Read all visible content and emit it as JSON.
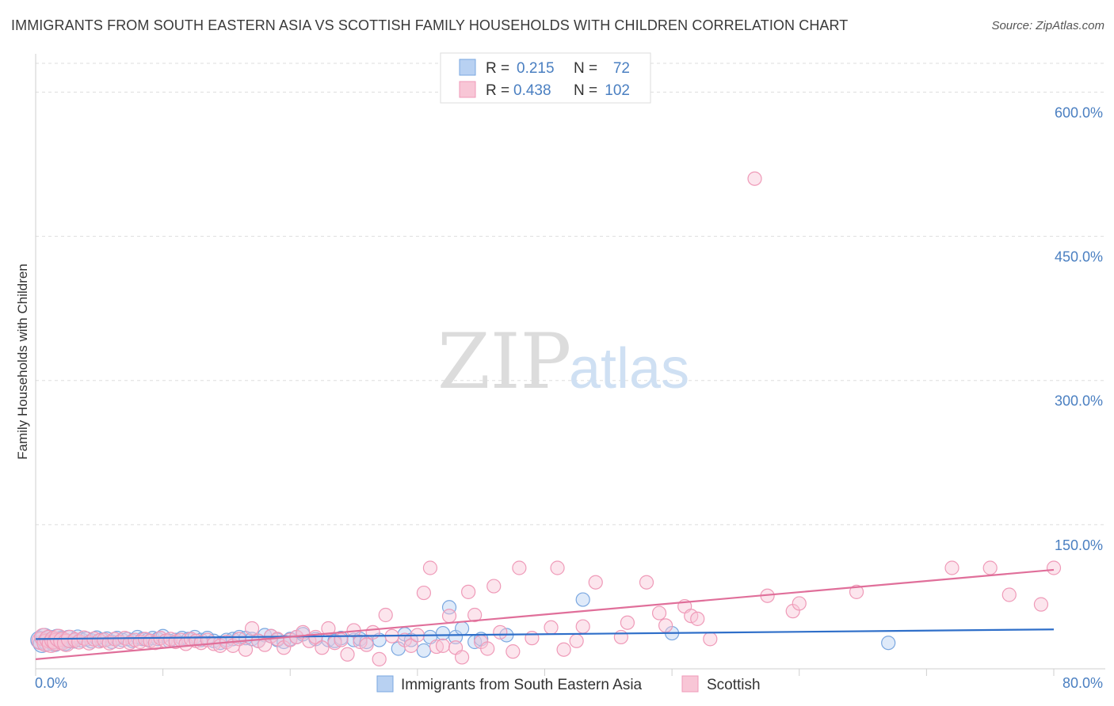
{
  "title": "IMMIGRANTS FROM SOUTH EASTERN ASIA VS SCOTTISH FAMILY HOUSEHOLDS WITH CHILDREN CORRELATION CHART",
  "source": "Source: ZipAtlas.com",
  "watermark": {
    "zip": "ZIP",
    "atlas": "atlas"
  },
  "legend": {
    "r_label": "R =",
    "n_label": "N =",
    "rows": [
      {
        "r": "0.215",
        "n": "72"
      },
      {
        "r": "0.438",
        "n": "102"
      }
    ]
  },
  "chart_data": {
    "type": "scatter",
    "title": "IMMIGRANTS FROM SOUTH EASTERN ASIA VS SCOTTISH FAMILY HOUSEHOLDS WITH CHILDREN CORRELATION CHART",
    "xlabel": "",
    "ylabel": "Family Households with Children",
    "xlim": [
      0,
      80
    ],
    "ylim": [
      0,
      630
    ],
    "x_tick_labels": [
      "0.0%",
      "80.0%"
    ],
    "y_ticks": [
      150,
      300,
      450,
      600
    ],
    "y_tick_labels": [
      "150.0%",
      "300.0%",
      "450.0%",
      "600.0%"
    ],
    "grid": true,
    "legend_position": "top-center",
    "series": [
      {
        "name": "Immigrants from South Eastern Asia",
        "color": "#7aa7e0",
        "fill": "#b8d1f2",
        "line_color": "#2f6fc9",
        "r": 0.215,
        "n": 72,
        "trend": {
          "x": [
            0,
            80
          ],
          "y": [
            31,
            41
          ]
        },
        "points": [
          [
            0.3,
            30
          ],
          [
            0.5,
            26
          ],
          [
            0.7,
            33
          ],
          [
            0.9,
            28
          ],
          [
            1.1,
            31
          ],
          [
            1.3,
            29
          ],
          [
            1.5,
            27
          ],
          [
            1.7,
            32
          ],
          [
            2.0,
            30
          ],
          [
            2.3,
            28
          ],
          [
            2.6,
            31
          ],
          [
            3.0,
            29
          ],
          [
            3.3,
            33
          ],
          [
            3.6,
            30
          ],
          [
            4.0,
            31
          ],
          [
            4.4,
            29
          ],
          [
            4.8,
            32
          ],
          [
            5.2,
            30
          ],
          [
            5.6,
            31
          ],
          [
            6.0,
            28
          ],
          [
            6.4,
            32
          ],
          [
            6.8,
            30
          ],
          [
            7.2,
            31
          ],
          [
            7.6,
            29
          ],
          [
            8.0,
            33
          ],
          [
            8.4,
            31
          ],
          [
            8.8,
            30
          ],
          [
            9.2,
            32
          ],
          [
            9.6,
            31
          ],
          [
            10.0,
            34
          ],
          [
            10.5,
            29
          ],
          [
            11.0,
            30
          ],
          [
            11.5,
            32
          ],
          [
            12.0,
            31
          ],
          [
            12.5,
            33
          ],
          [
            13.0,
            30
          ],
          [
            13.5,
            32
          ],
          [
            14.0,
            29
          ],
          [
            14.5,
            27
          ],
          [
            15.0,
            30
          ],
          [
            15.5,
            31
          ],
          [
            16.0,
            33
          ],
          [
            16.5,
            32
          ],
          [
            17.0,
            31
          ],
          [
            17.5,
            29
          ],
          [
            18.0,
            35
          ],
          [
            18.5,
            34
          ],
          [
            19.0,
            30
          ],
          [
            19.5,
            28
          ],
          [
            20.0,
            31
          ],
          [
            20.5,
            33
          ],
          [
            21.0,
            36
          ],
          [
            22.0,
            31
          ],
          [
            23.0,
            30
          ],
          [
            23.5,
            29
          ],
          [
            24.0,
            32
          ],
          [
            25.0,
            30
          ],
          [
            25.5,
            31
          ],
          [
            26.0,
            28
          ],
          [
            27.0,
            30
          ],
          [
            28.5,
            21
          ],
          [
            29.0,
            36
          ],
          [
            29.5,
            30
          ],
          [
            30.5,
            19
          ],
          [
            31.0,
            33
          ],
          [
            32.0,
            37
          ],
          [
            32.5,
            64
          ],
          [
            33.0,
            33
          ],
          [
            33.5,
            42
          ],
          [
            34.5,
            28
          ],
          [
            35.0,
            31
          ],
          [
            37.0,
            35
          ],
          [
            43.0,
            72
          ],
          [
            50.0,
            37
          ],
          [
            67.0,
            27
          ]
        ]
      },
      {
        "name": "Scottish",
        "color": "#ef9ab8",
        "fill": "#f8c6d6",
        "line_color": "#e06f9a",
        "r": 0.438,
        "n": 102,
        "trend": {
          "x": [
            0,
            80
          ],
          "y": [
            10,
            103
          ]
        },
        "points": [
          [
            0.4,
            29
          ],
          [
            0.6,
            33
          ],
          [
            0.8,
            27
          ],
          [
            1.0,
            31
          ],
          [
            1.2,
            26
          ],
          [
            1.4,
            30
          ],
          [
            1.6,
            28
          ],
          [
            1.8,
            32
          ],
          [
            2.1,
            29
          ],
          [
            2.4,
            27
          ],
          [
            2.7,
            31
          ],
          [
            3.1,
            30
          ],
          [
            3.4,
            28
          ],
          [
            3.8,
            32
          ],
          [
            4.2,
            27
          ],
          [
            4.6,
            31
          ],
          [
            5.0,
            29
          ],
          [
            5.4,
            30
          ],
          [
            5.8,
            27
          ],
          [
            6.2,
            31
          ],
          [
            6.6,
            28
          ],
          [
            7.0,
            32
          ],
          [
            7.4,
            27
          ],
          [
            7.8,
            30
          ],
          [
            8.2,
            28
          ],
          [
            8.6,
            31
          ],
          [
            9.0,
            29
          ],
          [
            9.4,
            27
          ],
          [
            9.8,
            32
          ],
          [
            10.2,
            29
          ],
          [
            10.6,
            31
          ],
          [
            11.0,
            28
          ],
          [
            11.4,
            30
          ],
          [
            11.8,
            26
          ],
          [
            12.2,
            31
          ],
          [
            12.6,
            29
          ],
          [
            13.0,
            27
          ],
          [
            13.5,
            30
          ],
          [
            14.0,
            26
          ],
          [
            14.5,
            24
          ],
          [
            15.0,
            28
          ],
          [
            15.5,
            24
          ],
          [
            16.0,
            31
          ],
          [
            16.5,
            20
          ],
          [
            17.0,
            42
          ],
          [
            17.5,
            29
          ],
          [
            18.0,
            25
          ],
          [
            18.5,
            34
          ],
          [
            19.0,
            31
          ],
          [
            19.5,
            22
          ],
          [
            20.0,
            30
          ],
          [
            20.5,
            33
          ],
          [
            21.0,
            38
          ],
          [
            21.5,
            29
          ],
          [
            22.0,
            33
          ],
          [
            22.5,
            22
          ],
          [
            23.0,
            42
          ],
          [
            23.5,
            27
          ],
          [
            24.0,
            30
          ],
          [
            24.5,
            15
          ],
          [
            25.0,
            40
          ],
          [
            25.5,
            28
          ],
          [
            26.0,
            25
          ],
          [
            26.5,
            38
          ],
          [
            27.0,
            10
          ],
          [
            27.5,
            56
          ],
          [
            28.0,
            34
          ],
          [
            29.0,
            30
          ],
          [
            29.5,
            24
          ],
          [
            30.0,
            35
          ],
          [
            30.5,
            79
          ],
          [
            31.0,
            105
          ],
          [
            31.5,
            23
          ],
          [
            32.0,
            24
          ],
          [
            32.5,
            55
          ],
          [
            33.0,
            22
          ],
          [
            33.5,
            12
          ],
          [
            34.0,
            80
          ],
          [
            34.5,
            56
          ],
          [
            35.0,
            28
          ],
          [
            35.5,
            21
          ],
          [
            36.0,
            86
          ],
          [
            36.5,
            38
          ],
          [
            37.5,
            18
          ],
          [
            38.0,
            105
          ],
          [
            39.0,
            32
          ],
          [
            40.5,
            43
          ],
          [
            41.0,
            105
          ],
          [
            41.5,
            20
          ],
          [
            42.5,
            29
          ],
          [
            43.0,
            44
          ],
          [
            44.0,
            90
          ],
          [
            46.0,
            33
          ],
          [
            46.5,
            48
          ],
          [
            48.0,
            90
          ],
          [
            49.0,
            58
          ],
          [
            49.5,
            45
          ],
          [
            51.0,
            65
          ],
          [
            51.5,
            55
          ],
          [
            52.0,
            52
          ],
          [
            53.0,
            31
          ],
          [
            56.5,
            510
          ],
          [
            57.5,
            76
          ],
          [
            59.5,
            60
          ],
          [
            60.0,
            68
          ],
          [
            64.5,
            80
          ],
          [
            72.0,
            105
          ],
          [
            75.0,
            105
          ],
          [
            76.5,
            77
          ],
          [
            79.0,
            67
          ],
          [
            80.0,
            105
          ]
        ]
      }
    ]
  }
}
